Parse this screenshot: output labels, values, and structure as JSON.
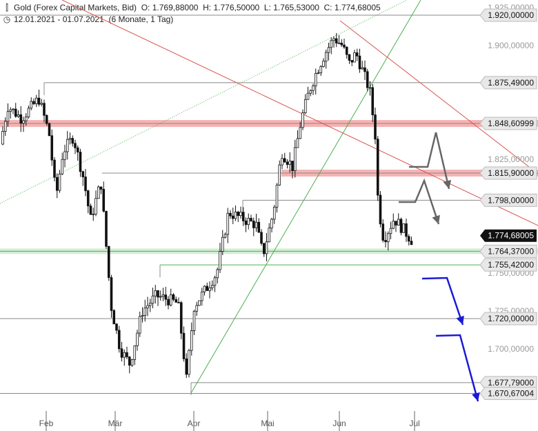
{
  "header": {
    "line1": "Gold (Forex Capital Markets, Bid)  O: 1.769,88000  H: 1.776,50000  L: 1.765,53000  C: 1.774,68005",
    "line2": "12.01.2021 - 01.07.2021  (6 Monate, 1 Tag)",
    "candle_icon": "candlestick-icon",
    "clock_icon": "clock-icon"
  },
  "chart_data": {
    "type": "candlestick",
    "title": "Gold (Forex Capital Markets, Bid)",
    "period": "12.01.2021 - 01.07.2021 (6 Monate, 1 Tag)",
    "last_ohlc": {
      "open": 1769.88,
      "high": 1776.5,
      "low": 1765.53,
      "close": 1774.68005
    },
    "ylim": [
      1665,
      1925
    ],
    "y_ticks": [
      {
        "value": 1925,
        "label": "1.925,00000"
      },
      {
        "value": 1900,
        "label": "1.900,00000"
      },
      {
        "value": 1825,
        "label": "1.825,00000"
      },
      {
        "value": 1750,
        "label": "1.750,00000"
      },
      {
        "value": 1725,
        "label": "1.725,00000"
      },
      {
        "value": 1700,
        "label": "1.700,00000"
      }
    ],
    "x_ticks": [
      "Feb",
      "Mär",
      "Apr",
      "Mai",
      "Jun",
      "Jul"
    ],
    "price_levels": [
      {
        "value": 1920.0,
        "label": "1.920,00000",
        "style": "gray"
      },
      {
        "value": 1875.49,
        "label": "1.875,49000",
        "style": "gray"
      },
      {
        "value": 1848.60999,
        "label": "1.848,60999",
        "style": "red-zone"
      },
      {
        "value": 1815.9,
        "label": "1.815,90000",
        "style": "red-zone"
      },
      {
        "value": 1798.0,
        "label": "1.798,00000",
        "style": "gray"
      },
      {
        "value": 1764.37,
        "label": "1.764,37000",
        "style": "green-zone"
      },
      {
        "value": 1755.42,
        "label": "1.755,42000",
        "style": "green"
      },
      {
        "value": 1720.0,
        "label": "1.720,00000",
        "style": "gray"
      },
      {
        "value": 1677.79,
        "label": "1.677,79000",
        "style": "gray"
      },
      {
        "value": 1670.67004,
        "label": "1.670,67004",
        "style": "gray"
      }
    ],
    "current_price": {
      "value": 1774.68005,
      "label": "1.774,68005"
    },
    "colors": {
      "candle": "#111111",
      "trend_red": "#d9534f",
      "trend_green": "#4caf50",
      "zone_red": "#f5b3b3",
      "zone_green": "#d4edd4",
      "arrow_gray": "#666666",
      "arrow_blue": "#1a1ad6",
      "current_badge": "#111111"
    }
  }
}
